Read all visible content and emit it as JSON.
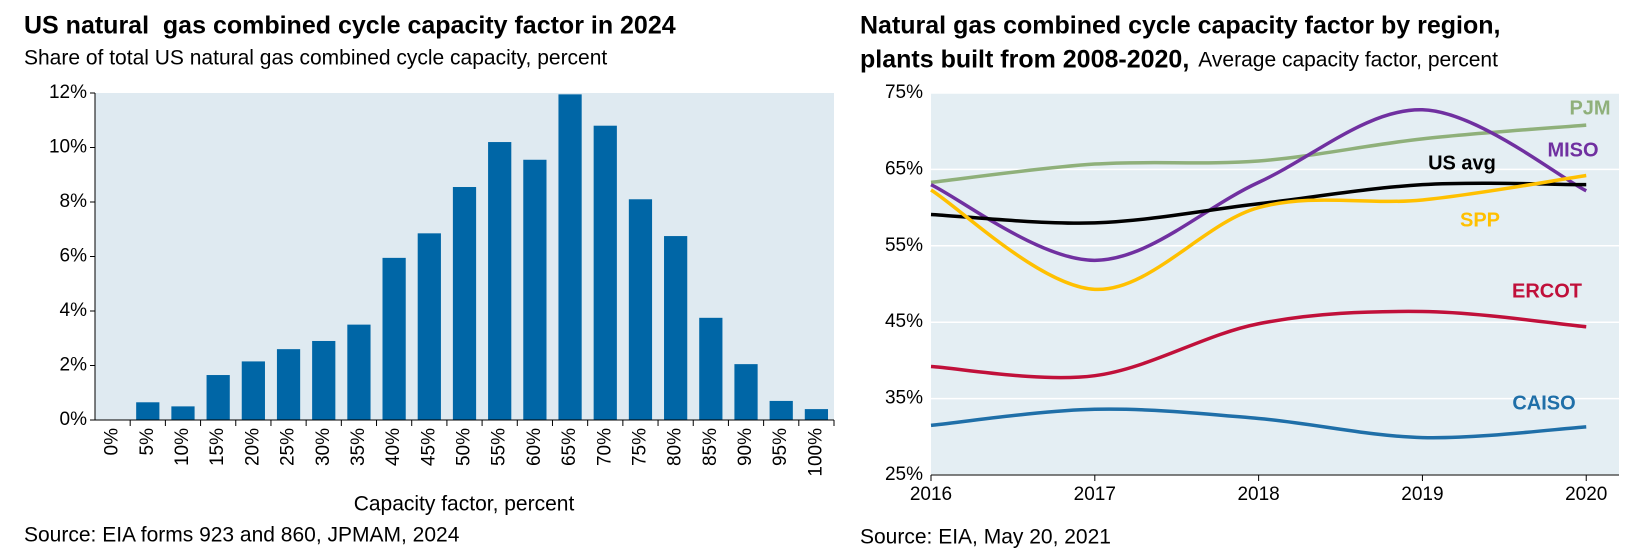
{
  "chart_data": [
    {
      "type": "bar",
      "title": "US natural  gas combined cycle capacity factor in 2024",
      "subtitle": "Share of total US natural gas combined cycle capacity, percent",
      "x_label": "Capacity factor, percent",
      "source": "Source: EIA forms 923 and 860, JPMAM, 2024",
      "categories": [
        "0%",
        "5%",
        "10%",
        "15%",
        "20%",
        "25%",
        "30%",
        "35%",
        "40%",
        "45%",
        "50%",
        "55%",
        "60%",
        "65%",
        "70%",
        "75%",
        "80%",
        "85%",
        "90%",
        "95%",
        "100%"
      ],
      "values": [
        0,
        0.65,
        0.5,
        1.65,
        2.15,
        2.6,
        2.9,
        3.5,
        5.95,
        6.85,
        8.55,
        10.2,
        9.55,
        11.95,
        10.8,
        8.1,
        6.75,
        3.75,
        2.05,
        0.7,
        0.4
      ],
      "color": "#0066a6",
      "ylim": [
        0,
        12
      ],
      "yticks": [
        {
          "value": 0,
          "label": "0%"
        },
        {
          "value": 2,
          "label": "2%"
        },
        {
          "value": 4,
          "label": "4%"
        },
        {
          "value": 6,
          "label": "6%"
        },
        {
          "value": 8,
          "label": "8%"
        },
        {
          "value": 10,
          "label": "10%"
        },
        {
          "value": 12,
          "label": "12%"
        }
      ],
      "grid": false
    },
    {
      "type": "line",
      "title": [
        "Natural gas combined cycle capacity factor by region,",
        "plants built from 2008-2020,"
      ],
      "subtitle": "Average capacity factor, percent",
      "source": "Source: EIA, May 20, 2021",
      "x": [
        2016,
        2017,
        2018,
        2019,
        2020
      ],
      "xlim": [
        2016,
        2020.2
      ],
      "xticks": [
        2016,
        2017,
        2018,
        2019,
        2020
      ],
      "ylim": [
        25,
        75
      ],
      "yticks": [
        {
          "value": 25,
          "label": "25%"
        },
        {
          "value": 35,
          "label": "35%"
        },
        {
          "value": 45,
          "label": "45%"
        },
        {
          "value": 55,
          "label": "55%"
        },
        {
          "value": 65,
          "label": "65%"
        },
        {
          "value": 75,
          "label": "75%"
        }
      ],
      "grid": true,
      "series": [
        {
          "name": "PJM",
          "color": "#8fb07a",
          "values": [
            63.3,
            65.7,
            66.1,
            69,
            70.8
          ]
        },
        {
          "name": "MISO",
          "color": "#7030a0",
          "values": [
            63,
            53.1,
            63.3,
            72.8,
            62.2
          ]
        },
        {
          "name": "US avg",
          "color": "#000000",
          "values": [
            59.1,
            58,
            60.5,
            63,
            63
          ]
        },
        {
          "name": "SPP",
          "color": "#ffc000",
          "values": [
            62.3,
            49.3,
            60,
            61,
            64.2
          ]
        },
        {
          "name": "ERCOT",
          "color": "#c0103a",
          "values": [
            39.2,
            38,
            44.8,
            46.4,
            44.4
          ]
        },
        {
          "name": "CAISO",
          "color": "#1f6fa8",
          "values": [
            31.5,
            33.6,
            32.4,
            29.9,
            31.3
          ]
        }
      ]
    }
  ]
}
